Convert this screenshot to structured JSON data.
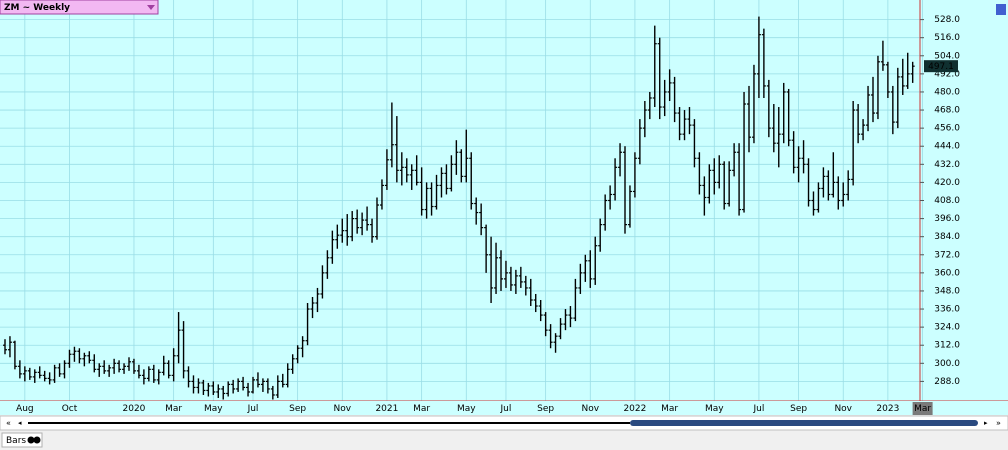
{
  "chart_data": {
    "type": "ohlc",
    "title": "ZM ~ Weekly",
    "status_label": "Bars",
    "bar_color": "#000000",
    "grid": true,
    "axis_side": "right",
    "ylim": [
      275,
      541
    ],
    "yticks": [
      {
        "value": 288,
        "label": "288.0"
      },
      {
        "value": 300,
        "label": "300.0"
      },
      {
        "value": 312,
        "label": "312.0"
      },
      {
        "value": 324,
        "label": "324.0"
      },
      {
        "value": 336,
        "label": "336.0"
      },
      {
        "value": 348,
        "label": "348.0"
      },
      {
        "value": 360,
        "label": "360.0"
      },
      {
        "value": 372,
        "label": "372.0"
      },
      {
        "value": 384,
        "label": "384.0"
      },
      {
        "value": 396,
        "label": "396.0"
      },
      {
        "value": 408,
        "label": "408.0"
      },
      {
        "value": 420,
        "label": "420.0"
      },
      {
        "value": 432,
        "label": "432.0"
      },
      {
        "value": 444,
        "label": "444.0"
      },
      {
        "value": 456,
        "label": "456.0"
      },
      {
        "value": 468,
        "label": "468.0"
      },
      {
        "value": 480,
        "label": "480.0"
      },
      {
        "value": 492,
        "label": "492.0"
      },
      {
        "value": 504,
        "label": "504.0"
      },
      {
        "value": 516,
        "label": "516.0"
      },
      {
        "value": 528,
        "label": "528.0"
      }
    ],
    "categories": [
      null,
      null,
      null,
      null,
      "Aug",
      null,
      null,
      null,
      null,
      null,
      null,
      null,
      null,
      "Oct",
      null,
      null,
      null,
      null,
      null,
      null,
      null,
      null,
      null,
      null,
      null,
      null,
      "2020",
      null,
      null,
      null,
      null,
      null,
      null,
      null,
      "Mar",
      null,
      null,
      null,
      null,
      null,
      null,
      null,
      "May",
      null,
      null,
      null,
      null,
      null,
      null,
      null,
      "Jul",
      null,
      null,
      null,
      null,
      null,
      null,
      null,
      null,
      "Sep",
      null,
      null,
      null,
      null,
      null,
      null,
      null,
      null,
      "Nov",
      null,
      null,
      null,
      null,
      null,
      null,
      null,
      null,
      "2021",
      null,
      null,
      null,
      null,
      null,
      null,
      "Mar",
      null,
      null,
      null,
      null,
      null,
      null,
      null,
      null,
      "May",
      null,
      null,
      null,
      null,
      null,
      null,
      null,
      "Jul",
      null,
      null,
      null,
      null,
      null,
      null,
      null,
      "Sep",
      null,
      null,
      null,
      null,
      null,
      null,
      null,
      null,
      "Nov",
      null,
      null,
      null,
      null,
      null,
      null,
      null,
      null,
      "2022",
      null,
      null,
      null,
      null,
      null,
      null,
      "Mar",
      null,
      null,
      null,
      null,
      null,
      null,
      null,
      null,
      "May",
      null,
      null,
      null,
      null,
      null,
      null,
      null,
      null,
      "Jul",
      null,
      null,
      null,
      null,
      null,
      null,
      null,
      "Sep",
      null,
      null,
      null,
      null,
      null,
      null,
      null,
      null,
      "Nov",
      null,
      null,
      null,
      null,
      null,
      null,
      null,
      null,
      "2023",
      null,
      null,
      null,
      null,
      null,
      null,
      "Mar"
    ],
    "ohlc": [
      [
        312,
        316,
        306,
        309
      ],
      [
        309,
        318,
        304,
        314
      ],
      [
        314,
        315,
        296,
        298
      ],
      [
        298,
        302,
        290,
        293
      ],
      [
        293,
        298,
        288,
        295
      ],
      [
        295,
        297,
        289,
        291
      ],
      [
        291,
        296,
        287,
        294
      ],
      [
        294,
        298,
        290,
        292
      ],
      [
        292,
        295,
        288,
        290
      ],
      [
        290,
        294,
        286,
        289
      ],
      [
        289,
        299,
        287,
        297
      ],
      [
        297,
        300,
        291,
        293
      ],
      [
        293,
        302,
        290,
        300
      ],
      [
        300,
        309,
        297,
        306
      ],
      [
        306,
        311,
        301,
        308
      ],
      [
        308,
        310,
        300,
        303
      ],
      [
        303,
        307,
        298,
        305
      ],
      [
        305,
        308,
        300,
        302
      ],
      [
        302,
        306,
        294,
        296
      ],
      [
        296,
        300,
        291,
        298
      ],
      [
        298,
        302,
        293,
        295
      ],
      [
        295,
        299,
        291,
        297
      ],
      [
        297,
        303,
        293,
        300
      ],
      [
        300,
        302,
        294,
        296
      ],
      [
        296,
        300,
        293,
        298
      ],
      [
        298,
        304,
        295,
        301
      ],
      [
        301,
        303,
        293,
        295
      ],
      [
        295,
        299,
        290,
        292
      ],
      [
        292,
        296,
        286,
        290
      ],
      [
        290,
        298,
        288,
        296
      ],
      [
        296,
        299,
        287,
        289
      ],
      [
        289,
        296,
        286,
        294
      ],
      [
        294,
        305,
        292,
        300
      ],
      [
        300,
        302,
        290,
        292
      ],
      [
        292,
        310,
        288,
        305
      ],
      [
        305,
        334,
        300,
        322
      ],
      [
        322,
        328,
        290,
        295
      ],
      [
        295,
        298,
        284,
        288
      ],
      [
        288,
        292,
        280,
        284
      ],
      [
        284,
        290,
        280,
        287
      ],
      [
        287,
        289,
        279,
        282
      ],
      [
        282,
        287,
        278,
        285
      ],
      [
        285,
        288,
        279,
        281
      ],
      [
        281,
        286,
        277,
        283
      ],
      [
        283,
        285,
        276,
        280
      ],
      [
        280,
        288,
        278,
        286
      ],
      [
        286,
        289,
        280,
        283
      ],
      [
        283,
        290,
        281,
        288
      ],
      [
        288,
        291,
        282,
        284
      ],
      [
        284,
        287,
        278,
        281
      ],
      [
        281,
        291,
        280,
        289
      ],
      [
        289,
        294,
        284,
        286
      ],
      [
        286,
        290,
        281,
        288
      ],
      [
        288,
        290,
        280,
        283
      ],
      [
        283,
        285,
        276,
        279
      ],
      [
        279,
        292,
        277,
        288
      ],
      [
        288,
        293,
        284,
        286
      ],
      [
        286,
        300,
        284,
        296
      ],
      [
        296,
        306,
        293,
        303
      ],
      [
        303,
        312,
        300,
        310
      ],
      [
        310,
        318,
        304,
        315
      ],
      [
        315,
        340,
        312,
        336
      ],
      [
        336,
        344,
        330,
        340
      ],
      [
        340,
        350,
        334,
        346
      ],
      [
        346,
        365,
        343,
        360
      ],
      [
        360,
        375,
        356,
        370
      ],
      [
        370,
        388,
        366,
        382
      ],
      [
        382,
        392,
        376,
        385
      ],
      [
        385,
        396,
        380,
        388
      ],
      [
        388,
        399,
        378,
        384
      ],
      [
        384,
        401,
        381,
        396
      ],
      [
        396,
        402,
        386,
        390
      ],
      [
        390,
        400,
        385,
        395
      ],
      [
        395,
        404,
        388,
        392
      ],
      [
        392,
        396,
        380,
        384
      ],
      [
        384,
        410,
        382,
        405
      ],
      [
        405,
        422,
        402,
        418
      ],
      [
        418,
        442,
        415,
        435
      ],
      [
        435,
        473,
        430,
        445
      ],
      [
        445,
        464,
        420,
        428
      ],
      [
        428,
        440,
        418,
        430
      ],
      [
        430,
        436,
        420,
        425
      ],
      [
        425,
        432,
        415,
        428
      ],
      [
        428,
        438,
        418,
        420
      ],
      [
        420,
        430,
        398,
        402
      ],
      [
        402,
        420,
        396,
        416
      ],
      [
        416,
        420,
        398,
        404
      ],
      [
        404,
        425,
        402,
        418
      ],
      [
        418,
        430,
        410,
        426
      ],
      [
        426,
        432,
        412,
        416
      ],
      [
        416,
        438,
        414,
        432
      ],
      [
        432,
        448,
        425,
        440
      ],
      [
        440,
        442,
        420,
        424
      ],
      [
        424,
        455,
        420,
        436
      ],
      [
        436,
        440,
        402,
        406
      ],
      [
        406,
        410,
        392,
        400
      ],
      [
        400,
        406,
        385,
        390
      ],
      [
        390,
        392,
        360,
        372
      ],
      [
        372,
        384,
        340,
        350
      ],
      [
        350,
        380,
        346,
        370
      ],
      [
        370,
        375,
        348,
        356
      ],
      [
        356,
        368,
        350,
        360
      ],
      [
        360,
        364,
        348,
        352
      ],
      [
        352,
        362,
        346,
        358
      ],
      [
        358,
        364,
        350,
        354
      ],
      [
        354,
        358,
        345,
        350
      ],
      [
        350,
        356,
        338,
        342
      ],
      [
        342,
        346,
        334,
        338
      ],
      [
        338,
        342,
        328,
        332
      ],
      [
        332,
        334,
        318,
        322
      ],
      [
        322,
        326,
        310,
        314
      ],
      [
        314,
        320,
        307,
        318
      ],
      [
        318,
        330,
        316,
        326
      ],
      [
        326,
        336,
        322,
        332
      ],
      [
        332,
        338,
        324,
        330
      ],
      [
        330,
        356,
        328,
        350
      ],
      [
        350,
        366,
        346,
        360
      ],
      [
        360,
        372,
        354,
        368
      ],
      [
        368,
        375,
        350,
        356
      ],
      [
        356,
        384,
        352,
        378
      ],
      [
        378,
        396,
        374,
        392
      ],
      [
        392,
        412,
        388,
        408
      ],
      [
        408,
        418,
        402,
        412
      ],
      [
        412,
        436,
        408,
        430
      ],
      [
        430,
        446,
        424,
        440
      ],
      [
        440,
        444,
        386,
        392
      ],
      [
        392,
        418,
        390,
        414
      ],
      [
        414,
        440,
        410,
        436
      ],
      [
        436,
        462,
        432,
        456
      ],
      [
        456,
        474,
        450,
        468
      ],
      [
        468,
        480,
        462,
        476
      ],
      [
        476,
        524,
        470,
        512
      ],
      [
        512,
        516,
        462,
        470
      ],
      [
        470,
        488,
        464,
        480
      ],
      [
        480,
        495,
        474,
        486
      ],
      [
        486,
        490,
        460,
        466
      ],
      [
        466,
        470,
        448,
        452
      ],
      [
        452,
        468,
        448,
        462
      ],
      [
        462,
        470,
        452,
        458
      ],
      [
        458,
        462,
        430,
        436
      ],
      [
        436,
        440,
        412,
        418
      ],
      [
        418,
        424,
        398,
        410
      ],
      [
        410,
        432,
        406,
        428
      ],
      [
        428,
        436,
        412,
        420
      ],
      [
        420,
        438,
        416,
        432
      ],
      [
        432,
        434,
        402,
        406
      ],
      [
        406,
        434,
        404,
        428
      ],
      [
        428,
        446,
        424,
        440
      ],
      [
        440,
        446,
        398,
        402
      ],
      [
        402,
        480,
        400,
        472
      ],
      [
        472,
        484,
        440,
        450
      ],
      [
        450,
        498,
        446,
        492
      ],
      [
        492,
        530,
        476,
        518
      ],
      [
        518,
        522,
        476,
        484
      ],
      [
        484,
        488,
        450,
        456
      ],
      [
        456,
        472,
        440,
        446
      ],
      [
        446,
        470,
        430,
        452
      ],
      [
        452,
        486,
        446,
        480
      ],
      [
        480,
        482,
        444,
        448
      ],
      [
        448,
        454,
        426,
        430
      ],
      [
        430,
        444,
        420,
        436
      ],
      [
        436,
        448,
        426,
        432
      ],
      [
        432,
        436,
        404,
        408
      ],
      [
        408,
        414,
        398,
        402
      ],
      [
        402,
        420,
        400,
        416
      ],
      [
        416,
        430,
        410,
        424
      ],
      [
        424,
        428,
        408,
        412
      ],
      [
        412,
        440,
        410,
        420
      ],
      [
        420,
        424,
        402,
        408
      ],
      [
        408,
        420,
        404,
        412
      ],
      [
        412,
        428,
        408,
        422
      ],
      [
        422,
        474,
        418,
        468
      ],
      [
        468,
        472,
        446,
        452
      ],
      [
        452,
        462,
        448,
        458
      ],
      [
        458,
        484,
        454,
        478
      ],
      [
        478,
        490,
        460,
        466
      ],
      [
        466,
        504,
        462,
        500
      ],
      [
        500,
        514,
        494,
        498
      ],
      [
        498,
        500,
        476,
        480
      ],
      [
        480,
        484,
        452,
        460
      ],
      [
        460,
        496,
        456,
        490
      ],
      [
        490,
        502,
        478,
        484
      ],
      [
        484,
        506,
        482,
        492
      ],
      [
        492,
        500,
        486,
        497.1
      ],
      null,
      null
    ]
  }
}
